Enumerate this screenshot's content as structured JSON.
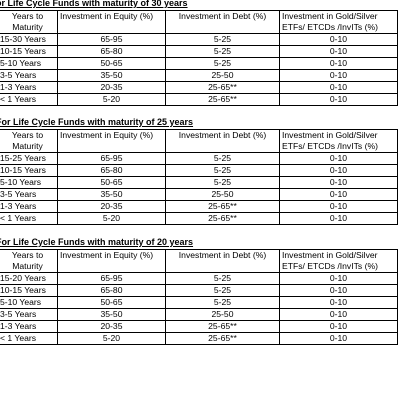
{
  "sections": [
    {
      "title_prefix": "or Life Cycle Funds with maturity of ",
      "title_years": "30 years",
      "headers": [
        "Years to Maturity",
        "Investment in Equity (%)",
        "Investment in Debt (%)",
        "Investment in Gold/Silver ETFs/ ETCDs /InvITs (%)"
      ],
      "rows": [
        [
          "15-30 Years",
          "65-95",
          "5-25",
          "0-10"
        ],
        [
          "10-15 Years",
          "65-80",
          "5-25",
          "0-10"
        ],
        [
          "5-10 Years",
          "50-65",
          "5-25",
          "0-10"
        ],
        [
          "3-5 Years",
          "35-50",
          "25-50",
          "0-10"
        ],
        [
          "1-3 Years",
          "20-35",
          "25-65**",
          "0-10"
        ],
        [
          "< 1 Years",
          "5-20",
          "25-65**",
          "0-10"
        ]
      ]
    },
    {
      "title_prefix": "For Life Cycle Funds with maturity of ",
      "title_years": "25 years",
      "headers": [
        "Years to Maturity",
        "Investment in Equity (%)",
        "Investment in Debt (%)",
        "Investment in Gold/Silver ETFs/ ETCDs /InvITs (%)"
      ],
      "rows": [
        [
          "15-25 Years",
          "65-95",
          "5-25",
          "0-10"
        ],
        [
          "10-15 Years",
          "65-80",
          "5-25",
          "0-10"
        ],
        [
          "5-10 Years",
          "50-65",
          "5-25",
          "0-10"
        ],
        [
          "3-5 Years",
          "35-50",
          "25-50",
          "0-10"
        ],
        [
          "1-3 Years",
          "20-35",
          "25-65**",
          "0-10"
        ],
        [
          "< 1 Years",
          "5-20",
          "25-65**",
          "0-10"
        ]
      ]
    },
    {
      "title_prefix": "For Life Cycle Funds with maturity of ",
      "title_years": "20 years",
      "headers": [
        "Years to Maturity",
        "Investment in Equity (%)",
        "Investment in Debt (%)",
        "Investment in Gold/Silver ETFs/ ETCDs /InvITs (%)"
      ],
      "rows": [
        [
          "15-20 Years",
          "65-95",
          "5-25",
          "0-10"
        ],
        [
          "10-15 Years",
          "65-80",
          "5-25",
          "0-10"
        ],
        [
          "5-10 Years",
          "50-65",
          "5-25",
          "0-10"
        ],
        [
          "3-5 Years",
          "35-50",
          "25-50",
          "0-10"
        ],
        [
          "1-3 Years",
          "20-35",
          "25-65**",
          "0-10"
        ],
        [
          "< 1 Years",
          "5-20",
          "25-65**",
          "0-10"
        ]
      ]
    }
  ]
}
